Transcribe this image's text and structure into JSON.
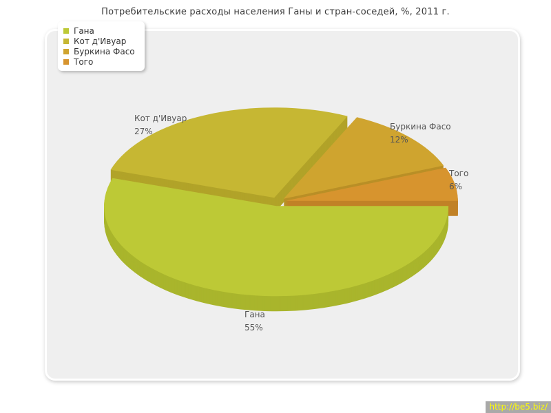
{
  "title": "Потребительские расходы населения Ганы и стран-соседей, %, 2011 г.",
  "watermark": "http://be5.biz/",
  "chart_data": {
    "type": "pie",
    "title": "Потребительские расходы населения Ганы и стран-соседей, %, 2011 г.",
    "style": "3d-exploded-pie",
    "labels": [
      "Гана",
      "Кот д'Ивуар",
      "Буркина Фасо",
      "Того"
    ],
    "values": [
      55,
      27,
      12,
      6
    ],
    "unit": "%",
    "colors": [
      "#bdc936",
      "#c6b733",
      "#cfa42f",
      "#d7942e"
    ],
    "side_colors": [
      "#a9b52c",
      "#b1a329",
      "#b98f26",
      "#c18126"
    ],
    "slice_labels": [
      "Гана 55%",
      "Кот д'Ивуар 27%",
      "Буркина Фасо 12%",
      "Того 6%"
    ],
    "legend": [
      "Гана",
      "Кот д'Ивуар",
      "Буркина Фасо",
      "Того"
    ],
    "legend_position": "top-left",
    "start_angle": 0,
    "direction": "clockwise",
    "background": "#efefef",
    "label_color": "#555555"
  }
}
